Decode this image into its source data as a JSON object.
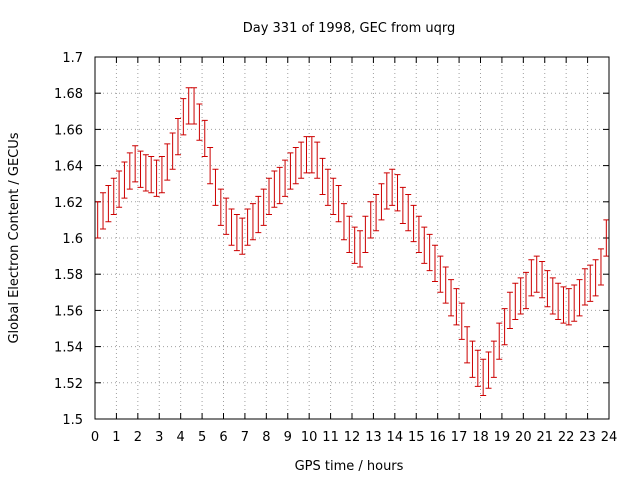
{
  "chart_data": {
    "type": "scatter",
    "style": "errorbars",
    "title": "Day 331 of 1998, GEC from uqrg",
    "xlabel": "GPS time / hours",
    "ylabel": "Global Electron Content / GECUs",
    "xlim": [
      0,
      24
    ],
    "ylim": [
      1.5,
      1.7
    ],
    "grid": true,
    "series_color": "#cc0000",
    "x_ticks": [
      0,
      1,
      2,
      3,
      4,
      5,
      6,
      7,
      8,
      9,
      10,
      11,
      12,
      13,
      14,
      15,
      16,
      17,
      18,
      19,
      20,
      21,
      22,
      23,
      24
    ],
    "x_tick_labels": [
      "0",
      "1",
      "2",
      "3",
      "4",
      "5",
      "6",
      "7",
      "8",
      "9",
      "10",
      "11",
      "12",
      "13",
      "14",
      "15",
      "16",
      "17",
      "18",
      "19",
      "20",
      "21",
      "22",
      "23",
      "24"
    ],
    "y_ticks": [
      1.5,
      1.52,
      1.54,
      1.56,
      1.58,
      1.6,
      1.62,
      1.64,
      1.66,
      1.68,
      1.7
    ],
    "y_tick_labels": [
      "1.5",
      "1.52",
      "1.54",
      "1.56",
      "1.58",
      "1.6",
      "1.62",
      "1.64",
      "1.66",
      "1.68",
      "1.7"
    ],
    "x": [
      0.125,
      0.375,
      0.625,
      0.875,
      1.125,
      1.375,
      1.625,
      1.875,
      2.125,
      2.375,
      2.625,
      2.875,
      3.125,
      3.375,
      3.625,
      3.875,
      4.125,
      4.375,
      4.625,
      4.875,
      5.125,
      5.375,
      5.625,
      5.875,
      6.125,
      6.375,
      6.625,
      6.875,
      7.125,
      7.375,
      7.625,
      7.875,
      8.125,
      8.375,
      8.625,
      8.875,
      9.125,
      9.375,
      9.625,
      9.875,
      10.125,
      10.375,
      10.625,
      10.875,
      11.125,
      11.375,
      11.625,
      11.875,
      12.125,
      12.375,
      12.625,
      12.875,
      13.125,
      13.375,
      13.625,
      13.875,
      14.125,
      14.375,
      14.625,
      14.875,
      15.125,
      15.375,
      15.625,
      15.875,
      16.125,
      16.375,
      16.625,
      16.875,
      17.125,
      17.375,
      17.625,
      17.875,
      18.125,
      18.375,
      18.625,
      18.875,
      19.125,
      19.375,
      19.625,
      19.875,
      20.125,
      20.375,
      20.625,
      20.875,
      21.125,
      21.375,
      21.625,
      21.875,
      22.125,
      22.375,
      22.625,
      22.875,
      23.125,
      23.375,
      23.625,
      23.875
    ],
    "y": [
      1.61,
      1.615,
      1.619,
      1.623,
      1.627,
      1.632,
      1.637,
      1.641,
      1.638,
      1.636,
      1.635,
      1.633,
      1.635,
      1.642,
      1.648,
      1.656,
      1.667,
      1.673,
      1.673,
      1.664,
      1.655,
      1.64,
      1.628,
      1.617,
      1.612,
      1.606,
      1.603,
      1.601,
      1.606,
      1.609,
      1.613,
      1.617,
      1.623,
      1.627,
      1.629,
      1.633,
      1.637,
      1.64,
      1.643,
      1.646,
      1.646,
      1.643,
      1.634,
      1.628,
      1.623,
      1.619,
      1.609,
      1.602,
      1.596,
      1.594,
      1.602,
      1.61,
      1.614,
      1.62,
      1.626,
      1.628,
      1.625,
      1.618,
      1.614,
      1.608,
      1.602,
      1.596,
      1.592,
      1.586,
      1.58,
      1.574,
      1.567,
      1.562,
      1.554,
      1.541,
      1.533,
      1.528,
      1.523,
      1.527,
      1.533,
      1.543,
      1.551,
      1.56,
      1.565,
      1.568,
      1.571,
      1.578,
      1.58,
      1.577,
      1.572,
      1.568,
      1.565,
      1.563,
      1.562,
      1.564,
      1.567,
      1.573,
      1.575,
      1.578,
      1.584,
      1.6
    ],
    "error": 0.01
  }
}
